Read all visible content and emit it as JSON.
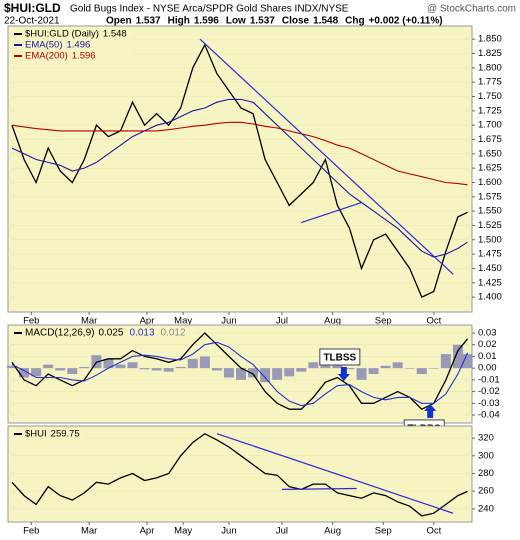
{
  "chart_data": [
    {
      "type": "line",
      "title": "$HUI:GLD",
      "subtitle": "Gold Bugs Index - NYSE Arca/SPDR Gold Shares INDX/NYSE",
      "source": "@ StockCharts.com",
      "date": "22-Oct-2021",
      "quote": [
        {
          "label": "Open",
          "value": 1.537
        },
        {
          "label": "High",
          "value": 1.596
        },
        {
          "label": "Low",
          "value": 1.537
        },
        {
          "label": "Close",
          "value": 1.548
        },
        {
          "label": "Chg",
          "value": "+0.002 (+0.11%)"
        }
      ],
      "x": [
        0,
        5,
        10,
        15,
        20,
        25,
        30,
        35,
        40,
        45,
        50,
        55,
        60,
        65,
        70,
        75,
        80,
        85,
        90,
        95,
        100,
        105,
        110,
        115,
        120,
        125,
        130,
        135,
        140,
        145,
        150,
        155,
        160,
        165,
        170,
        175,
        180,
        185,
        189
      ],
      "xlim": [
        0,
        190
      ],
      "xticks": [
        {
          "value": 8,
          "label": "Feb"
        },
        {
          "value": 32,
          "label": "Mar"
        },
        {
          "value": 56,
          "label": "Apr"
        },
        {
          "value": 71,
          "label": "May"
        },
        {
          "value": 90,
          "label": "Jun"
        },
        {
          "value": 112,
          "label": "Jul"
        },
        {
          "value": 133,
          "label": "Aug"
        },
        {
          "value": 154,
          "label": "Sep"
        },
        {
          "value": 175,
          "label": "Oct"
        }
      ],
      "ylim": [
        1.374,
        1.873
      ],
      "yticks": [
        {
          "value": 1.85,
          "label": "1.850"
        },
        1.825,
        {
          "value": 1.8,
          "label": "1.800"
        },
        1.775,
        {
          "value": 1.75,
          "label": "1.750"
        },
        1.725,
        {
          "value": 1.7,
          "label": "1.700"
        },
        1.675,
        {
          "value": 1.65,
          "label": "1.650"
        },
        1.625,
        {
          "value": 1.6,
          "label": "1.600"
        },
        1.575,
        {
          "value": 1.55,
          "label": "1.550"
        },
        1.525,
        {
          "value": 1.5,
          "label": "1.500"
        },
        1.475,
        {
          "value": 1.45,
          "label": "1.450"
        },
        1.425,
        {
          "value": 1.4,
          "label": "1.400"
        }
      ],
      "series": [
        {
          "name": "$HUI:GLD (Daily)",
          "color": "#000000",
          "values": [
            1.7,
            1.64,
            1.6,
            1.66,
            1.62,
            1.6,
            1.64,
            1.7,
            1.68,
            1.69,
            1.74,
            1.7,
            1.72,
            1.7,
            1.73,
            1.8,
            1.84,
            1.79,
            1.76,
            1.73,
            1.72,
            1.64,
            1.6,
            1.56,
            1.58,
            1.6,
            1.64,
            1.56,
            1.52,
            1.45,
            1.5,
            1.51,
            1.48,
            1.45,
            1.4,
            1.41,
            1.48,
            1.54,
            1.548
          ]
        },
        {
          "name": "EMA(50)",
          "color": "#1a1aa0",
          "values": [
            1.66,
            1.65,
            1.64,
            1.635,
            1.63,
            1.62,
            1.625,
            1.635,
            1.65,
            1.665,
            1.68,
            1.69,
            1.7,
            1.705,
            1.715,
            1.725,
            1.73,
            1.74,
            1.745,
            1.745,
            1.74,
            1.72,
            1.7,
            1.68,
            1.66,
            1.64,
            1.62,
            1.6,
            1.58,
            1.565,
            1.55,
            1.535,
            1.52,
            1.5,
            1.48,
            1.47,
            1.475,
            1.485,
            1.496
          ]
        },
        {
          "name": "EMA(200)",
          "color": "#b00000",
          "values": [
            1.7,
            1.697,
            1.694,
            1.692,
            1.69,
            1.69,
            1.69,
            1.69,
            1.69,
            1.69,
            1.69,
            1.69,
            1.69,
            1.692,
            1.695,
            1.698,
            1.7,
            1.703,
            1.705,
            1.705,
            1.702,
            1.698,
            1.695,
            1.69,
            1.685,
            1.68,
            1.673,
            1.665,
            1.66,
            1.65,
            1.64,
            1.63,
            1.62,
            1.615,
            1.61,
            1.605,
            1.6,
            1.598,
            1.596
          ]
        }
      ],
      "trendlines": [
        {
          "color": "#2b2bd6",
          "points": [
            [
              78,
              1.85
            ],
            [
              183,
              1.44
            ]
          ]
        },
        {
          "color": "#2b2bd6",
          "points": [
            [
              120,
              1.53
            ],
            [
              145,
              1.565
            ]
          ]
        }
      ]
    },
    {
      "type": "line",
      "x": [
        0,
        5,
        10,
        15,
        20,
        25,
        30,
        35,
        40,
        45,
        50,
        55,
        60,
        65,
        70,
        75,
        80,
        85,
        90,
        95,
        100,
        105,
        110,
        115,
        120,
        125,
        130,
        135,
        140,
        145,
        150,
        155,
        160,
        165,
        170,
        175,
        180,
        185,
        189
      ],
      "xlim": [
        0,
        190
      ],
      "ylim": [
        -0.0468,
        0.0368
      ],
      "yticks": [
        0.03,
        0.02,
        0.01,
        {
          "value": 0,
          "label": "0.00"
        },
        -0.01,
        -0.02,
        -0.03,
        -0.04
      ],
      "series": [
        {
          "name": "MACD(12,26,9)",
          "color": "#000000",
          "kind": "line",
          "values": [
            0.005,
            -0.01,
            -0.015,
            -0.005,
            -0.01,
            -0.015,
            -0.01,
            0.005,
            0.008,
            0.008,
            0.015,
            0.01,
            0.008,
            0.005,
            0.008,
            0.02,
            0.03,
            0.02,
            0.01,
            0.0,
            -0.005,
            -0.02,
            -0.03,
            -0.035,
            -0.035,
            -0.025,
            -0.012,
            -0.008,
            -0.015,
            -0.03,
            -0.03,
            -0.025,
            -0.02,
            -0.025,
            -0.035,
            -0.03,
            -0.01,
            0.015,
            0.025
          ]
        },
        {
          "color": "#2233cc",
          "kind": "line",
          "values": [
            0.003,
            -0.002,
            -0.008,
            -0.008,
            -0.008,
            -0.01,
            -0.011,
            -0.006,
            0.0,
            0.005,
            0.01,
            0.011,
            0.01,
            0.008,
            0.007,
            0.012,
            0.02,
            0.022,
            0.018,
            0.01,
            0.003,
            -0.008,
            -0.02,
            -0.028,
            -0.032,
            -0.03,
            -0.022,
            -0.015,
            -0.014,
            -0.02,
            -0.025,
            -0.027,
            -0.025,
            -0.025,
            -0.03,
            -0.03,
            -0.022,
            -0.005,
            0.013
          ]
        },
        {
          "color": "#8a8ab4",
          "kind": "bar",
          "values": [
            0.002,
            -0.008,
            -0.007,
            0.003,
            -0.002,
            -0.005,
            0.001,
            0.011,
            0.008,
            0.003,
            0.005,
            -0.001,
            -0.002,
            -0.003,
            0.001,
            0.008,
            0.01,
            -0.002,
            -0.008,
            -0.01,
            -0.008,
            -0.012,
            -0.01,
            -0.007,
            -0.003,
            0.005,
            0.01,
            0.007,
            -0.001,
            -0.01,
            -0.005,
            0.002,
            0.005,
            0.0,
            -0.005,
            0.0,
            0.012,
            0.02,
            0.012
          ]
        }
      ],
      "annotations": [
        {
          "text": "TLBSS",
          "x": 136,
          "y": 0.0095,
          "arrow": "down"
        },
        {
          "text": "TLBBS",
          "x": 171,
          "y": -0.051,
          "arrow": "up"
        }
      ]
    },
    {
      "type": "line",
      "x": [
        0,
        5,
        10,
        15,
        20,
        25,
        30,
        35,
        40,
        45,
        50,
        55,
        60,
        65,
        70,
        75,
        80,
        85,
        90,
        95,
        100,
        105,
        110,
        115,
        120,
        125,
        130,
        135,
        140,
        145,
        150,
        155,
        160,
        165,
        170,
        175,
        180,
        185,
        189
      ],
      "xlim": [
        0,
        190
      ],
      "xticks": [
        {
          "value": 8,
          "label": "Feb"
        },
        {
          "value": 32,
          "label": "Mar"
        },
        {
          "value": 56,
          "label": "Apr"
        },
        {
          "value": 71,
          "label": "May"
        },
        {
          "value": 90,
          "label": "Jun"
        },
        {
          "value": 112,
          "label": "Jul"
        },
        {
          "value": 133,
          "label": "Aug"
        },
        {
          "value": 154,
          "label": "Sep"
        },
        {
          "value": 175,
          "label": "Oct"
        }
      ],
      "ylim": [
        225.1,
        333.7
      ],
      "yticks": [
        320,
        300,
        280,
        260,
        240
      ],
      "series": [
        {
          "name": "$HUI",
          "color": "#000000",
          "values": [
            270,
            255,
            245,
            265,
            255,
            250,
            258,
            270,
            268,
            275,
            280,
            272,
            275,
            280,
            300,
            315,
            325,
            318,
            310,
            300,
            290,
            280,
            278,
            265,
            262,
            268,
            268,
            258,
            255,
            252,
            258,
            255,
            248,
            243,
            232,
            235,
            245,
            255,
            259.75
          ]
        }
      ],
      "trendlines": [
        {
          "color": "#2b2bd6",
          "points": [
            [
              85,
              325
            ],
            [
              183,
              235
            ]
          ]
        },
        {
          "color": "#2b2bd6",
          "points": [
            [
              112,
              262
            ],
            [
              143,
              263
            ]
          ]
        }
      ]
    }
  ]
}
